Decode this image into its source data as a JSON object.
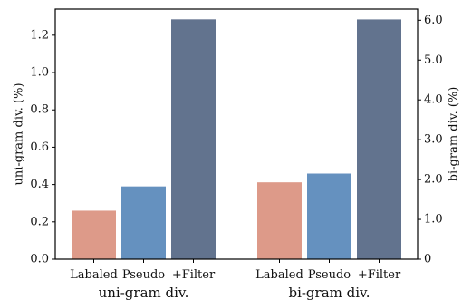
{
  "chart_data": {
    "type": "bar",
    "groups": [
      {
        "label": "uni-gram div.",
        "axis": "left",
        "categories": [
          "Labaled",
          "Pseudo",
          "+Filter"
        ],
        "values": [
          0.26,
          0.39,
          1.285
        ]
      },
      {
        "label": "bi-gram div.",
        "axis": "right",
        "categories": [
          "Labaled",
          "Pseudo",
          "+Filter"
        ],
        "values": [
          1.93,
          2.15,
          6.02
        ]
      }
    ],
    "colors": [
      "#dd9a89",
      "#6591bf",
      "#62738e"
    ],
    "left_axis": {
      "label": "uni-gram div. (%)",
      "ylim": [
        0,
        1.34
      ],
      "ticks": [
        0.0,
        0.2,
        0.4,
        0.6,
        0.8,
        1.0,
        1.2
      ],
      "tick_labels": [
        "0.0",
        "0.2",
        "0.4",
        "0.6",
        "0.8",
        "1.0",
        "1.2"
      ]
    },
    "right_axis": {
      "label": "bi-gram div. (%)",
      "ylim": [
        0,
        6.28
      ],
      "ticks": [
        0,
        1,
        2,
        3,
        4,
        5,
        6
      ],
      "tick_labels": [
        "0",
        "1.0",
        "2.0",
        "3.0",
        "4.0",
        "5.0",
        "6.0"
      ]
    },
    "grid": false,
    "legend": "none"
  }
}
